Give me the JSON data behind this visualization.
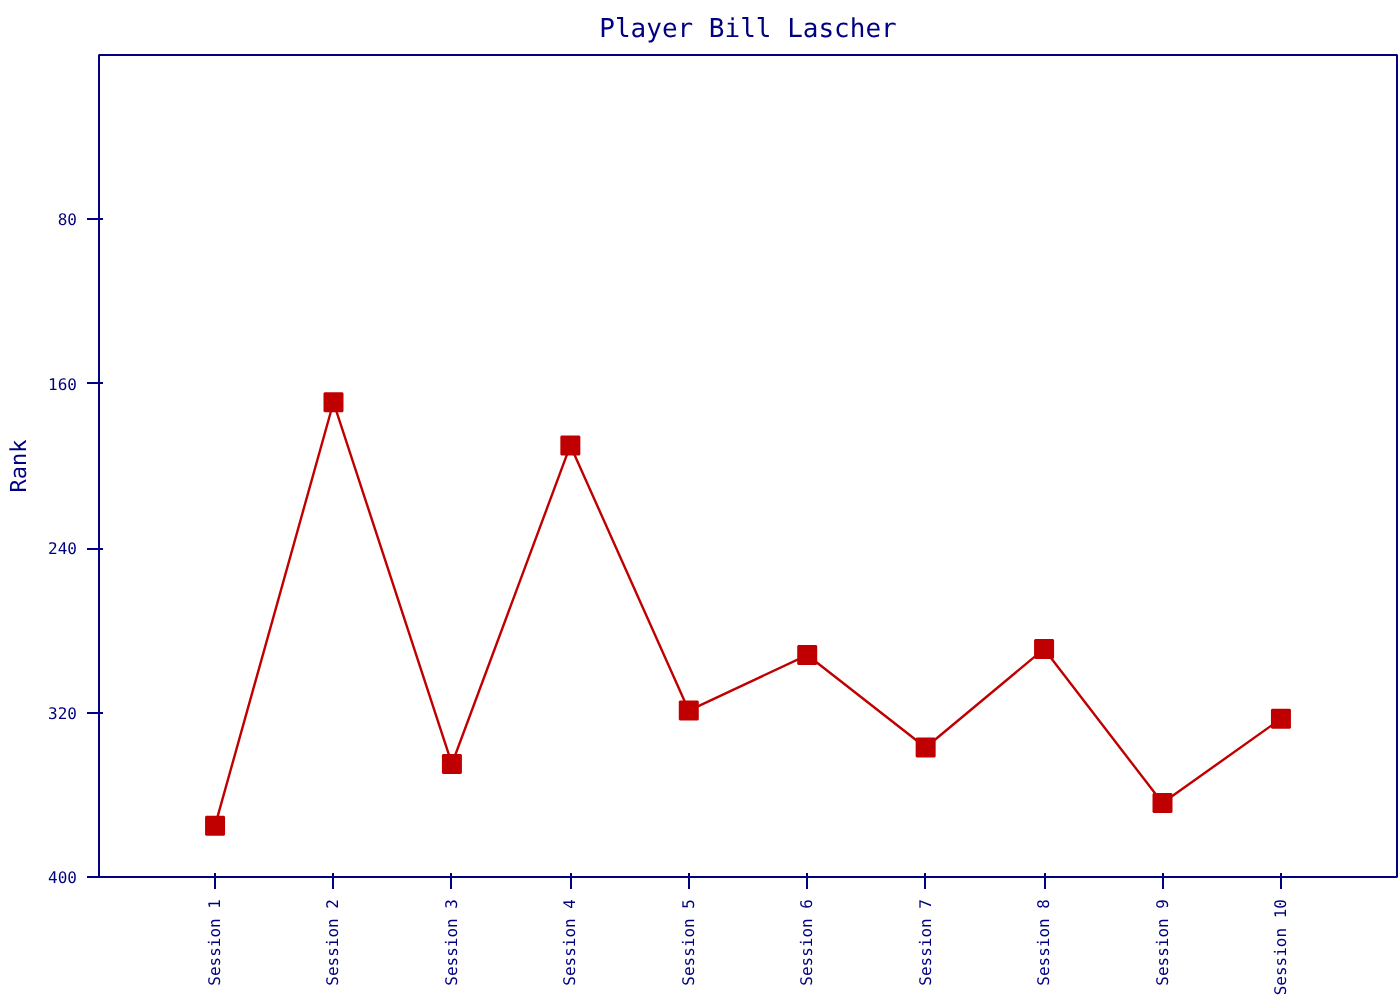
{
  "chart_data": {
    "type": "line",
    "title": "Player Bill Lascher",
    "ylabel": "Rank",
    "categories": [
      "Session 1",
      "Session 2",
      "Session 3",
      "Session 4",
      "Session 5",
      "Session 6",
      "Session 7",
      "Session 8",
      "Session 9",
      "Session 10"
    ],
    "series": [
      {
        "color": "#c00000",
        "values": [
          375,
          169,
          345,
          190,
          319,
          292,
          337,
          289,
          364,
          323
        ]
      }
    ],
    "ylim": [
      400,
      0
    ],
    "yticks": [
      80,
      160,
      240,
      320,
      400
    ],
    "grid": false,
    "marker": "square",
    "line_style": "solid"
  }
}
